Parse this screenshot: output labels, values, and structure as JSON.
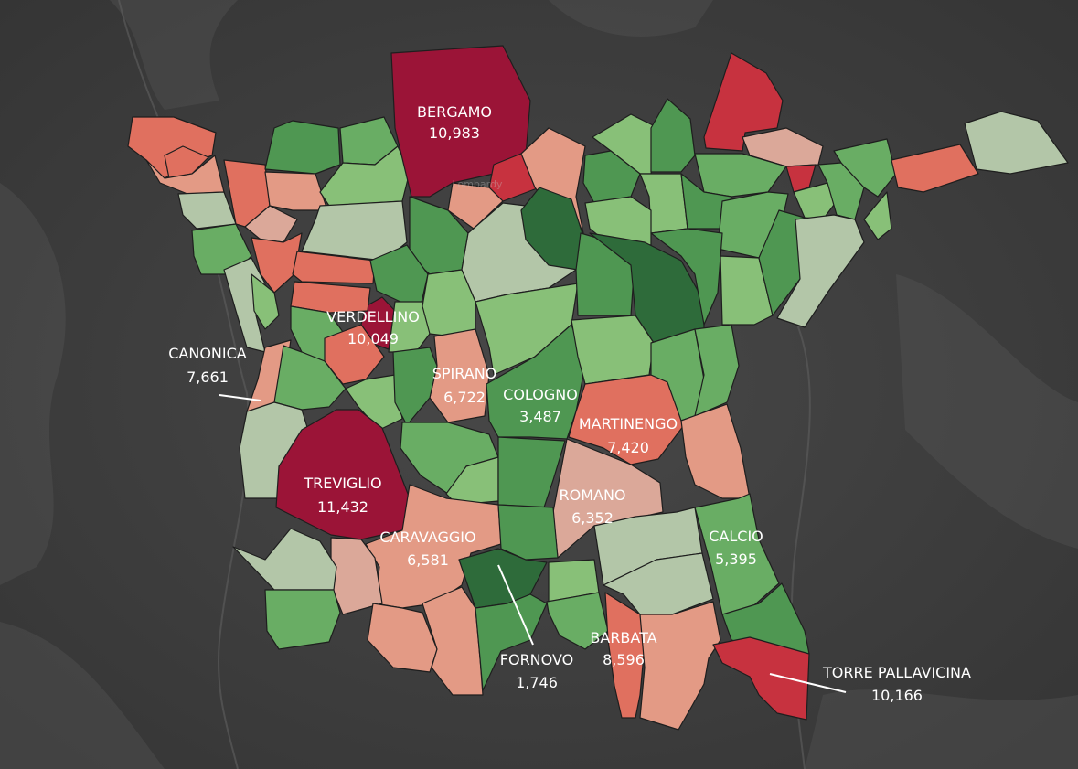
{
  "basemap": {
    "background_color": "#3d3d3d",
    "faint_label": "Lombardy"
  },
  "legend_scale": {
    "low_color": "#2e6b3a",
    "mid_color": "#c4c9b8",
    "high_color": "#9b1437"
  },
  "chart_data": {
    "type": "choropleth",
    "labeled_municipalities": [
      {
        "name": "BERGAMO",
        "value": 10983,
        "display": "10,983"
      },
      {
        "name": "VERDELLINO",
        "value": 10049,
        "display": "10,049"
      },
      {
        "name": "CANONICA",
        "value": 7661,
        "display": "7,661"
      },
      {
        "name": "SPIRANO",
        "value": 6722,
        "display": "6,722"
      },
      {
        "name": "COLOGNO",
        "value": 3487,
        "display": "3,487"
      },
      {
        "name": "MARTINENGO",
        "value": 7420,
        "display": "7,420"
      },
      {
        "name": "TREVIGLIO",
        "value": 11432,
        "display": "11,432"
      },
      {
        "name": "ROMANO",
        "value": 6352,
        "display": "6,352"
      },
      {
        "name": "CARAVAGGIO",
        "value": 6581,
        "display": "6,581"
      },
      {
        "name": "CALCIO",
        "value": 5395,
        "display": "5,395"
      },
      {
        "name": "FORNOVO",
        "value": 1746,
        "display": "1,746"
      },
      {
        "name": "BARBATA",
        "value": 8596,
        "display": "8,596"
      },
      {
        "name": "TORRE PALLAVICINA",
        "value": 10166,
        "display": "10,166"
      }
    ]
  },
  "palette": {
    "dark_red": "#9b1437",
    "red": "#c7323f",
    "salmon_red": "#e0705f",
    "salmon": "#e39a85",
    "pale_salmon": "#dba899",
    "grey_green": "#b3c6a8",
    "light_green": "#88c078",
    "green": "#69ad64",
    "mid_green": "#4f9752",
    "dark_green": "#2e6b3a"
  }
}
